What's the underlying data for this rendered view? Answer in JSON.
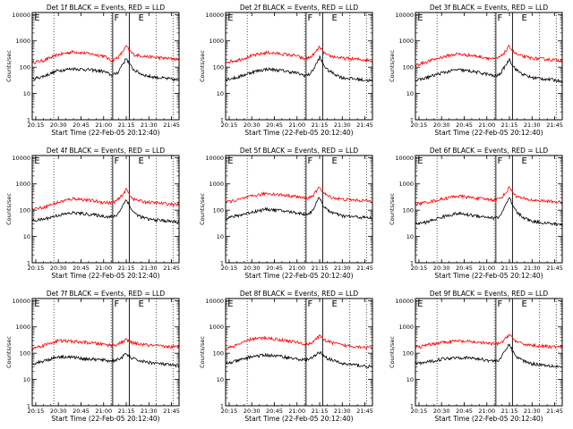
{
  "figure": {
    "panel_titles": [
      "Det 1f BLACK = Events, RED = LLD",
      "Det 2f BLACK = Events, RED = LLD",
      "Det 3f BLACK = Events, RED = LLD",
      "Det 4f BLACK = Events, RED = LLD",
      "Det 5f BLACK = Events, RED = LLD",
      "Det 6f BLACK = Events, RED = LLD",
      "Det 7f BLACK = Events, RED = LLD",
      "Det 8f BLACK = Events, RED = LLD",
      "Det 9f BLACK = Events, RED = LLD"
    ],
    "xlabel": "Start Time (22-Feb-05 20:12:40)",
    "ylabel": "Counts/sec",
    "interval_marks": [
      "E",
      "F",
      "E"
    ]
  },
  "chart_data": {
    "type": "line",
    "x_unit": "time (HH:MM, 22-Feb-05)",
    "xlim": [
      "20:12:40",
      "21:50:00"
    ],
    "x_ticks": [
      "20:15",
      "20:30",
      "20:45",
      "21:00",
      "21:15",
      "21:30",
      "21:45"
    ],
    "y_scale": "log",
    "ylim": [
      1,
      12000
    ],
    "y_ticks": [
      1,
      10,
      100,
      1000,
      10000
    ],
    "y_tick_labels": [
      "1",
      "10",
      "100",
      "1000",
      "10000"
    ],
    "vertical_dotted_lines": [
      "20:27",
      "21:05",
      "21:35",
      "21:46"
    ],
    "vertical_solid_lines": [
      "21:06",
      "21:17"
    ],
    "colors": {
      "events": "#000000",
      "lld": "#ff0000",
      "axes": "#000000"
    },
    "x_sample_times": [
      "20:12:40",
      "20:20",
      "20:30",
      "20:40",
      "20:50",
      "21:00",
      "21:05",
      "21:08",
      "21:10",
      "21:12",
      "21:14",
      "21:15",
      "21:17",
      "21:20",
      "21:25",
      "21:30",
      "21:40",
      "21:50"
    ],
    "panels": [
      {
        "detector": "1f",
        "series": [
          {
            "color": "#ff0000",
            "values": [
              150,
              180,
              300,
              390,
              330,
              270,
              180,
              210,
              250,
              350,
              500,
              650,
              430,
              300,
              270,
              250,
              220,
              200
            ]
          },
          {
            "color": "#000000",
            "values": [
              35,
              45,
              75,
              88,
              80,
              70,
              50,
              55,
              70,
              120,
              170,
              230,
              130,
              80,
              55,
              45,
              38,
              32
            ]
          }
        ]
      },
      {
        "detector": "2f",
        "series": [
          {
            "color": "#ff0000",
            "values": [
              160,
              180,
              270,
              360,
              320,
              270,
              200,
              230,
              270,
              350,
              500,
              600,
              400,
              280,
              250,
              220,
              200,
              180
            ]
          },
          {
            "color": "#000000",
            "values": [
              35,
              40,
              65,
              85,
              75,
              60,
              48,
              52,
              70,
              110,
              180,
              240,
              140,
              80,
              55,
              40,
              35,
              30
            ]
          }
        ]
      },
      {
        "detector": "3f",
        "series": [
          {
            "color": "#ff0000",
            "values": [
              120,
              160,
              240,
              320,
              280,
              230,
              200,
              230,
              280,
              380,
              520,
              650,
              420,
              300,
              250,
              220,
              200,
              180
            ]
          },
          {
            "color": "#000000",
            "values": [
              30,
              40,
              60,
              80,
              70,
              55,
              45,
              50,
              70,
              110,
              160,
              210,
              120,
              75,
              50,
              40,
              35,
              30
            ]
          }
        ]
      },
      {
        "detector": "4f",
        "series": [
          {
            "color": "#ff0000",
            "values": [
              110,
              130,
              200,
              280,
              240,
              200,
              190,
              220,
              260,
              360,
              500,
              650,
              400,
              260,
              220,
              200,
              180,
              160
            ]
          },
          {
            "color": "#000000",
            "values": [
              40,
              45,
              65,
              80,
              70,
              60,
              55,
              60,
              80,
              130,
              200,
              270,
              150,
              80,
              55,
              45,
              40,
              35
            ]
          }
        ]
      },
      {
        "detector": "5f",
        "series": [
          {
            "color": "#ff0000",
            "values": [
              200,
              240,
              340,
              440,
              380,
              330,
              280,
              300,
              340,
              450,
              650,
              800,
              500,
              350,
              290,
              260,
              240,
              220
            ]
          },
          {
            "color": "#000000",
            "values": [
              50,
              60,
              85,
              110,
              95,
              80,
              70,
              75,
              95,
              150,
              250,
              320,
              160,
              100,
              75,
              60,
              55,
              50
            ]
          }
        ]
      },
      {
        "detector": "6f",
        "series": [
          {
            "color": "#ff0000",
            "values": [
              170,
              200,
              260,
              350,
              300,
              260,
              250,
              270,
              320,
              420,
              600,
              800,
              500,
              330,
              270,
              240,
              220,
              200
            ]
          },
          {
            "color": "#000000",
            "values": [
              30,
              35,
              55,
              75,
              65,
              55,
              50,
              55,
              80,
              140,
              220,
              300,
              150,
              80,
              50,
              38,
              32,
              28
            ]
          }
        ]
      },
      {
        "detector": "7f",
        "series": [
          {
            "color": "#ff0000",
            "values": [
              150,
              200,
              300,
              280,
              250,
              220,
              200,
              210,
              230,
              260,
              300,
              320,
              280,
              240,
              220,
              200,
              180,
              170
            ]
          },
          {
            "color": "#000000",
            "values": [
              40,
              50,
              75,
              70,
              60,
              55,
              50,
              55,
              60,
              70,
              85,
              95,
              75,
              60,
              50,
              45,
              38,
              32
            ]
          }
        ]
      },
      {
        "detector": "8f",
        "series": [
          {
            "color": "#ff0000",
            "values": [
              150,
              200,
              350,
              380,
              320,
              260,
              220,
              230,
              260,
              320,
              400,
              450,
              380,
              280,
              240,
              200,
              180,
              160
            ]
          },
          {
            "color": "#000000",
            "values": [
              40,
              50,
              75,
              85,
              75,
              60,
              55,
              60,
              65,
              80,
              100,
              110,
              90,
              65,
              50,
              40,
              35,
              30
            ]
          }
        ]
      },
      {
        "detector": "9f",
        "series": [
          {
            "color": "#ff0000",
            "values": [
              160,
              200,
              260,
              290,
              270,
              240,
              220,
              230,
              260,
              340,
              460,
              560,
              380,
              260,
              220,
              200,
              180,
              170
            ]
          },
          {
            "color": "#000000",
            "values": [
              40,
              45,
              60,
              70,
              65,
              55,
              50,
              55,
              75,
              120,
              180,
              230,
              120,
              70,
              50,
              40,
              35,
              30
            ]
          }
        ]
      }
    ]
  }
}
